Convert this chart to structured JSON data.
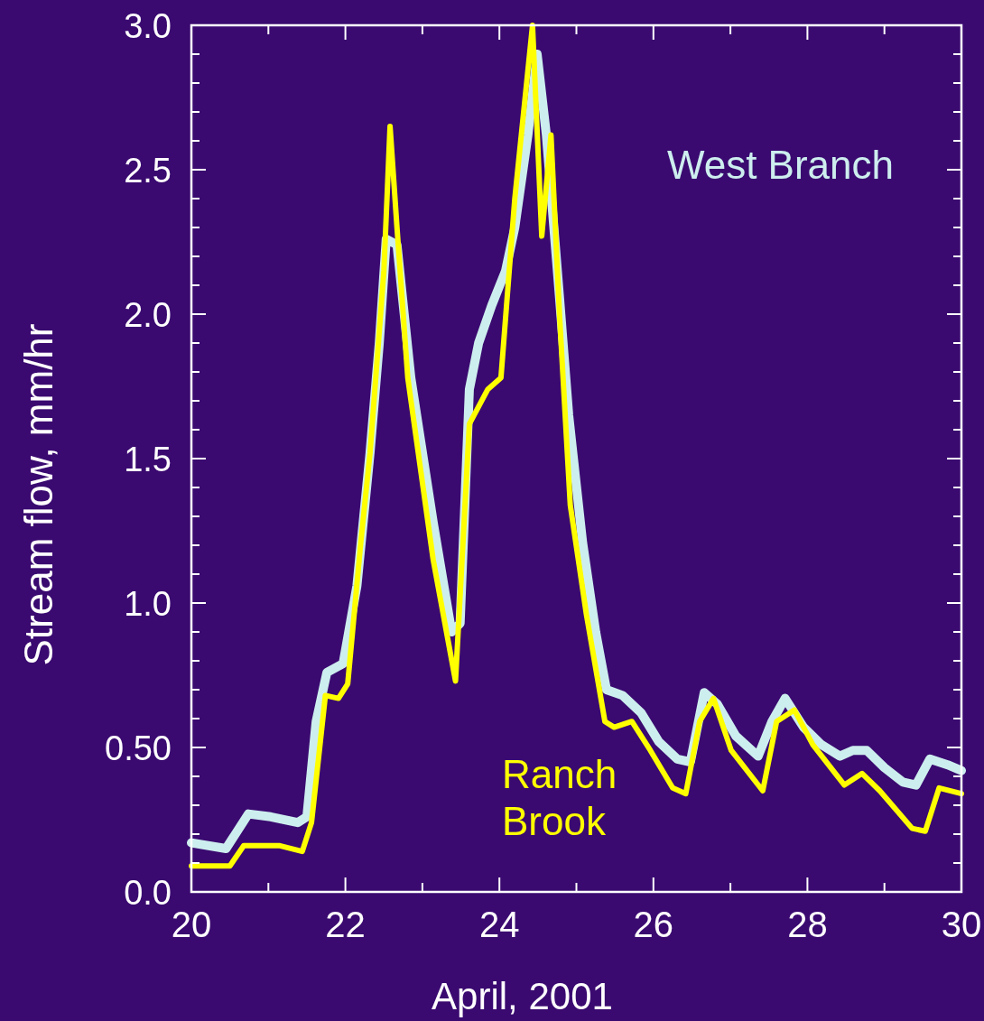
{
  "chart_data": {
    "type": "line",
    "xlabel": "April, 2001",
    "ylabel": "Stream flow, mm/hr",
    "xlim": [
      20,
      30
    ],
    "ylim": [
      0,
      3.0
    ],
    "xticks": [
      20,
      {
        "value": 21,
        "label": null
      },
      22,
      {
        "value": 23,
        "label": null
      },
      24,
      {
        "value": 25,
        "label": null
      },
      26,
      {
        "value": 27,
        "label": null
      },
      28,
      {
        "value": 29,
        "label": null
      },
      30
    ],
    "yticks": [
      {
        "value": 0,
        "label": "0.0"
      },
      {
        "value": 0.1,
        "label": null
      },
      {
        "value": 0.2,
        "label": null
      },
      {
        "value": 0.3,
        "label": null
      },
      {
        "value": 0.4,
        "label": null
      },
      {
        "value": 0.5,
        "label": "0.50"
      },
      {
        "value": 0.6,
        "label": null
      },
      {
        "value": 0.7,
        "label": null
      },
      {
        "value": 0.8,
        "label": null
      },
      {
        "value": 0.9,
        "label": null
      },
      {
        "value": 1.0,
        "label": "1.0"
      },
      {
        "value": 1.1,
        "label": null
      },
      {
        "value": 1.2,
        "label": null
      },
      {
        "value": 1.3,
        "label": null
      },
      {
        "value": 1.4,
        "label": null
      },
      {
        "value": 1.5,
        "label": "1.5"
      },
      {
        "value": 1.6,
        "label": null
      },
      {
        "value": 1.7,
        "label": null
      },
      {
        "value": 1.8,
        "label": null
      },
      {
        "value": 1.9,
        "label": null
      },
      {
        "value": 2.0,
        "label": "2.0"
      },
      {
        "value": 2.1,
        "label": null
      },
      {
        "value": 2.2,
        "label": null
      },
      {
        "value": 2.3,
        "label": null
      },
      {
        "value": 2.4,
        "label": null
      },
      {
        "value": 2.5,
        "label": "2.5"
      },
      {
        "value": 2.6,
        "label": null
      },
      {
        "value": 2.7,
        "label": null
      },
      {
        "value": 2.8,
        "label": null
      },
      {
        "value": 2.9,
        "label": null
      },
      {
        "value": 3.0,
        "label": "3.0"
      }
    ],
    "grid": false,
    "marker": "none",
    "line_style": "solid",
    "series": [
      {
        "name": "West Branch",
        "color": "#cdeeee",
        "x": [
          20.0,
          20.45,
          20.74,
          21.03,
          21.38,
          21.5,
          21.62,
          21.76,
          21.97,
          22.15,
          22.32,
          22.44,
          22.53,
          22.67,
          22.85,
          23.14,
          23.38,
          23.49,
          23.61,
          23.73,
          23.9,
          24.08,
          24.2,
          24.37,
          24.49,
          24.61,
          24.78,
          24.9,
          25.08,
          25.25,
          25.39,
          25.6,
          25.84,
          26.07,
          26.31,
          26.48,
          26.66,
          26.83,
          27.07,
          27.36,
          27.54,
          27.71,
          27.95,
          28.18,
          28.42,
          28.59,
          28.77,
          29.0,
          29.24,
          29.41,
          29.59,
          29.82,
          30.0
        ],
        "values": [
          0.17,
          0.15,
          0.27,
          0.26,
          0.24,
          0.26,
          0.59,
          0.76,
          0.79,
          1.06,
          1.52,
          1.9,
          2.26,
          2.24,
          1.78,
          1.28,
          0.9,
          0.93,
          1.74,
          1.9,
          2.03,
          2.15,
          2.3,
          2.62,
          2.9,
          2.62,
          2.06,
          1.65,
          1.21,
          0.9,
          0.7,
          0.68,
          0.62,
          0.52,
          0.46,
          0.45,
          0.69,
          0.65,
          0.54,
          0.47,
          0.59,
          0.67,
          0.57,
          0.51,
          0.47,
          0.49,
          0.49,
          0.43,
          0.38,
          0.37,
          0.46,
          0.44,
          0.42
        ]
      },
      {
        "name": "Ranch Brook",
        "color": "#ffff00",
        "x": [
          20.0,
          20.5,
          20.68,
          21.15,
          21.44,
          21.56,
          21.74,
          21.91,
          22.03,
          22.2,
          22.32,
          22.5,
          22.58,
          22.67,
          22.81,
          23.14,
          23.43,
          23.61,
          23.85,
          24.02,
          24.2,
          24.43,
          24.55,
          24.67,
          24.78,
          24.92,
          25.13,
          25.37,
          25.49,
          25.72,
          25.96,
          26.25,
          26.42,
          26.6,
          26.78,
          27.01,
          27.42,
          27.6,
          27.83,
          28.07,
          28.48,
          28.71,
          28.94,
          29.36,
          29.53,
          29.71,
          30.0
        ],
        "values": [
          0.09,
          0.09,
          0.16,
          0.16,
          0.14,
          0.24,
          0.68,
          0.67,
          0.72,
          1.21,
          1.52,
          2.15,
          2.65,
          2.3,
          1.78,
          1.15,
          0.73,
          1.62,
          1.74,
          1.78,
          2.4,
          3.0,
          2.27,
          2.62,
          2.0,
          1.34,
          0.96,
          0.59,
          0.57,
          0.59,
          0.49,
          0.36,
          0.34,
          0.59,
          0.67,
          0.49,
          0.35,
          0.59,
          0.63,
          0.51,
          0.37,
          0.41,
          0.35,
          0.22,
          0.21,
          0.36,
          0.34
        ]
      }
    ]
  }
}
